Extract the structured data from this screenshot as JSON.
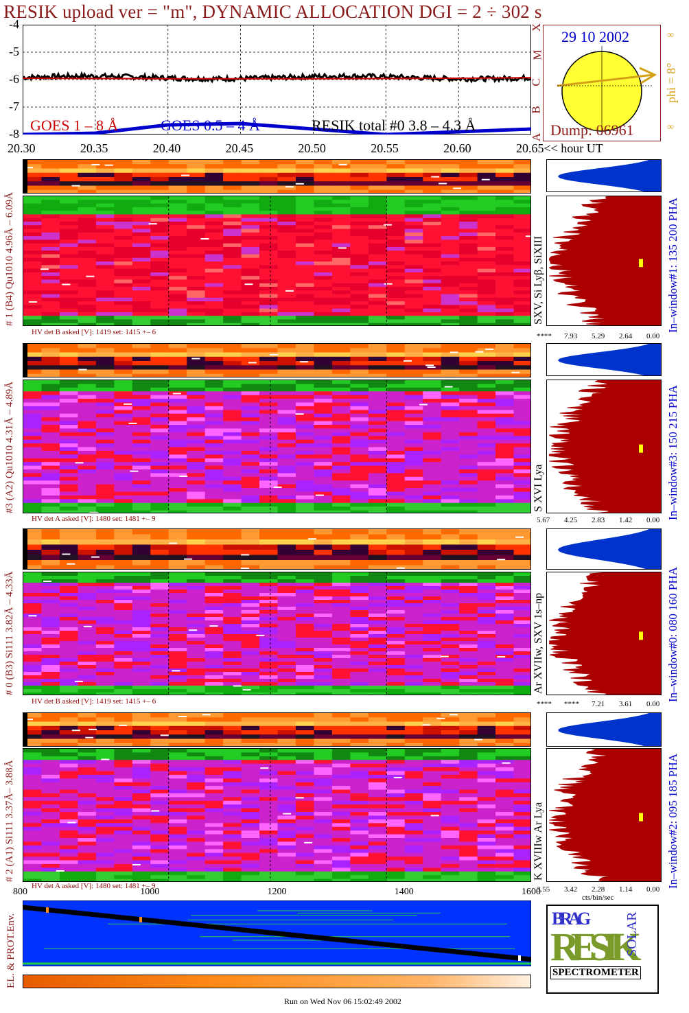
{
  "title": "RESIK upload ver = \"m\", DYNAMIC ALLOCATION  DGI =   2 ÷ 302 s",
  "footer": "Run on Wed Nov 06 15:02:49 2002",
  "colors": {
    "title": "#8b1a1a",
    "goes18": "#cc0000",
    "goes054": "#0000cc",
    "total": "#000000",
    "hist_blue": "#0033cc",
    "hist_red": "#aa0000",
    "sun": "#ffff33",
    "arrow": "#d4a017",
    "dump": "#8b1a1a",
    "date": "#0000cc"
  },
  "chart_data": [
    {
      "type": "line",
      "name_id": "lightcurve",
      "ylim": [
        -8,
        -4
      ],
      "yticks": [
        "-4",
        "-5",
        "-6",
        "-7",
        "-8"
      ],
      "xlim": [
        20.3,
        20.65
      ],
      "xticks": [
        "20.30",
        "20.35",
        "20.40",
        "20.45",
        "20.50",
        "20.55",
        "20.60",
        "20.65"
      ],
      "xlabel_suffix": "<< hour UT",
      "side_axis_letters": [
        "X",
        "M",
        "C",
        "B",
        "A"
      ],
      "series": [
        {
          "name": "GOES 1 – 8 Å",
          "x": [
            20.3,
            20.4,
            20.5,
            20.6,
            20.65
          ],
          "y": [
            -5.95,
            -5.97,
            -5.97,
            -5.95,
            -5.93
          ]
        },
        {
          "name": "GOES 0.5 – 4 Å",
          "x": [
            20.3,
            20.35,
            20.4,
            20.45,
            20.5,
            20.55,
            20.6,
            20.65
          ],
          "y": [
            -8.0,
            -7.95,
            -7.65,
            -7.6,
            -7.8,
            -8.0,
            -7.9,
            -7.8
          ]
        },
        {
          "name": "RESIK total #0  3.8 – 4.3 Å",
          "x": [
            20.3,
            20.4,
            20.5,
            20.6,
            20.65
          ],
          "y": [
            -5.9,
            -5.95,
            -5.92,
            -5.95,
            -5.85
          ]
        }
      ]
    },
    {
      "type": "heatmap",
      "name_id": "spectrogram-1",
      "label": "# 1 (B4) Qu1010 4.96Å – 6.09Å",
      "right_label": "SXV, Si Lyβ, SiXIII",
      "window_label": "In–window#1:  135 200 PHA",
      "hv": {
        "det": "B",
        "asked": "1419",
        "set": "1415",
        "pm": "6",
        "text": "HV det B asked [V]:  1419  set:  1415  +–    6"
      },
      "hist_ticks": [
        "****",
        "7.93",
        "5.29",
        "2.64",
        "0.00"
      ],
      "palette": "red"
    },
    {
      "type": "heatmap",
      "name_id": "spectrogram-3",
      "label": "#3 (A2) Qu1010  4.31Å – 4.89Å",
      "right_label": "S XVI Lya",
      "window_label": "In–window#3:  150 215 PHA",
      "hv": {
        "det": "A",
        "asked": "1480",
        "set": "1481",
        "pm": "9",
        "text": "HV det A asked [V]:  1480  set:  1481  +–    9"
      },
      "hist_ticks": [
        "5.67",
        "4.25",
        "2.83",
        "1.42",
        "0.00"
      ],
      "palette": "violet"
    },
    {
      "type": "heatmap",
      "name_id": "spectrogram-0",
      "label": "# 0 (B3) Si111  3.82Å – 4.33Å",
      "right_label": "Ar XVIIw,  SXV 1s–np",
      "window_label": "In–window#0:  080 160 PHA",
      "hv": {
        "det": "B",
        "asked": "1419",
        "set": "1415",
        "pm": "6",
        "text": "HV det B asked [V]:  1419  set:  1415  +–    6"
      },
      "hist_ticks": [
        "****",
        "****",
        "7.21",
        "3.61",
        "0.00"
      ],
      "palette": "violet"
    },
    {
      "type": "heatmap",
      "name_id": "spectrogram-2",
      "label": "# 2 (A1) Si111  3.37Å–  3.88Å",
      "right_label": "K XVIIIw  Ar Lya",
      "window_label": "In–window#2:  095 185 PHA",
      "hv": {
        "det": "A",
        "asked": "1480",
        "set": "1481",
        "pm": "9",
        "text": "HV det A asked [V]:  1480  set:  1481  +–    9"
      },
      "hist_ticks": [
        "3.55",
        "3.42",
        "2.28",
        "1.14",
        "0.00"
      ],
      "hist_xlabel": "cts/bin/sec",
      "palette": "violet"
    },
    {
      "type": "line",
      "name_id": "env-monitor",
      "label": "EL. & PROT.Env.",
      "xlim": [
        800,
        1600
      ],
      "xticks": [
        "800",
        "1000",
        "1200",
        "1400",
        "1600"
      ]
    }
  ],
  "sun": {
    "date": "29 10 2002",
    "dump": "Dump: 06961",
    "phi": "phi =  8°",
    "phi_side": "∞",
    "phi_side2": "∞"
  },
  "logo": {
    "letters_top": "BRAG",
    "letters_main": "RESIK",
    "side": "SOLAR",
    "bottom": "SPECTROMETER"
  }
}
